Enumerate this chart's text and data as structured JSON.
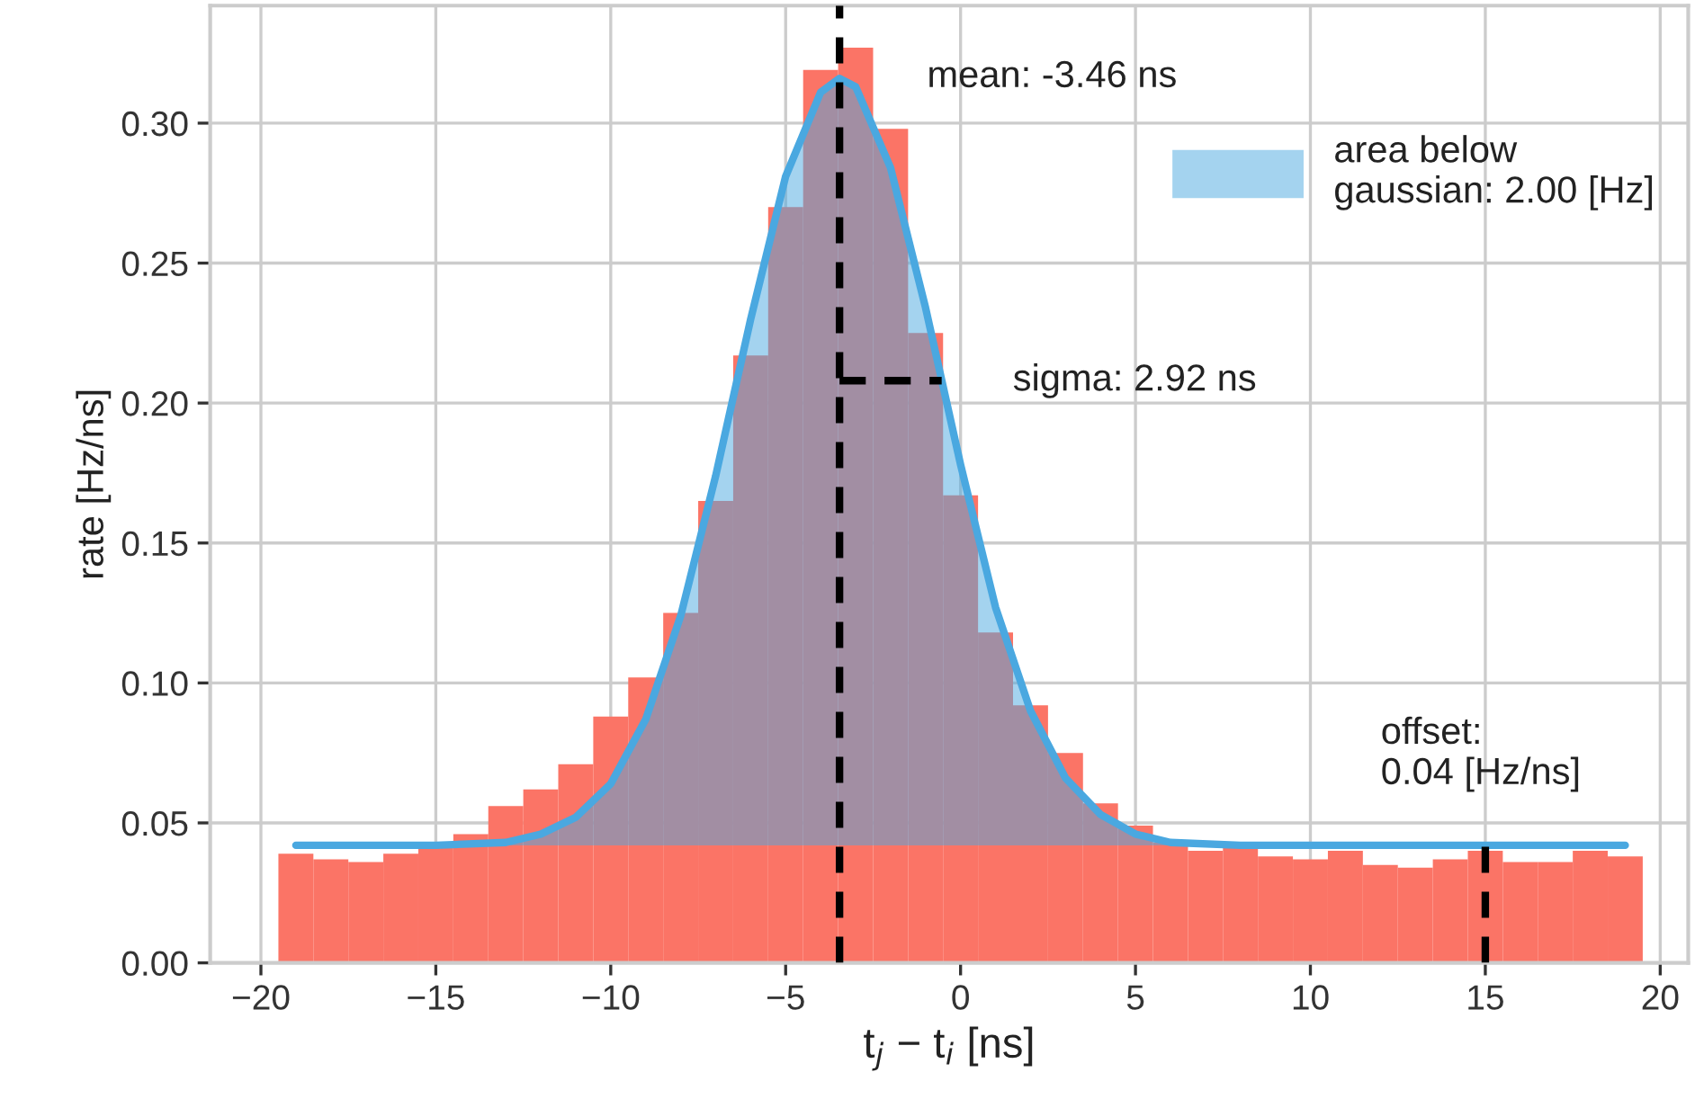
{
  "chart_data": {
    "type": "histogram",
    "bins": [
      -19.5,
      -18.5,
      -17.5,
      -16.5,
      -15.5,
      -14.5,
      -13.5,
      -12.5,
      -11.5,
      -10.5,
      -9.5,
      -8.5,
      -7.5,
      -6.5,
      -5.5,
      -4.5,
      -3.5,
      -2.5,
      -1.5,
      -0.5,
      0.5,
      1.5,
      2.5,
      3.5,
      4.5,
      5.5,
      6.5,
      7.5,
      8.5,
      9.5,
      10.5,
      11.5,
      12.5,
      13.5,
      14.5,
      15.5,
      16.5,
      17.5,
      18.5,
      19.5
    ],
    "values": [
      0.039,
      0.037,
      0.036,
      0.039,
      0.041,
      0.046,
      0.056,
      0.062,
      0.071,
      0.088,
      0.102,
      0.125,
      0.165,
      0.217,
      0.27,
      0.319,
      0.327,
      0.298,
      0.225,
      0.167,
      0.118,
      0.092,
      0.075,
      0.057,
      0.049,
      0.043,
      0.04,
      0.041,
      0.038,
      0.037,
      0.04,
      0.035,
      0.034,
      0.037,
      0.04,
      0.036,
      0.036,
      0.04,
      0.038
    ],
    "color": "#fb7466",
    "series": [
      {
        "type": "line",
        "name": "area below\ngaussian: 2.00 [Hz]",
        "color": "#4aa8e0",
        "x": [
          -19,
          -15,
          -13,
          -12,
          -11,
          -10,
          -9,
          -8,
          -7,
          -6,
          -5,
          -4,
          -3.46,
          -3,
          -2,
          -1,
          0,
          1,
          2,
          3,
          4,
          5,
          6,
          8,
          10,
          19
        ],
        "values": [
          0.042,
          0.042,
          0.043,
          0.046,
          0.052,
          0.064,
          0.087,
          0.124,
          0.174,
          0.23,
          0.281,
          0.311,
          0.316,
          0.313,
          0.284,
          0.234,
          0.178,
          0.127,
          0.09,
          0.066,
          0.053,
          0.046,
          0.043,
          0.042,
          0.042,
          0.042
        ]
      },
      {
        "type": "line",
        "color": "#000000",
        "line_style": "dashed",
        "x": [
          -3.46,
          -0.54
        ],
        "values": [
          0.208,
          0.208
        ]
      },
      {
        "type": "line",
        "color": "#000000",
        "line_style": "dashed",
        "x": [
          15,
          15
        ],
        "values": [
          0,
          0.042
        ]
      }
    ],
    "ref_lines": [
      {
        "axis": "x",
        "value": -3.46,
        "color": "#000000",
        "line_style": "dashed"
      }
    ],
    "annotations": [
      "mean: -3.46 ns",
      "sigma: 2.92 ns",
      "offset:\n0.04 [Hz/ns]"
    ],
    "xlabel": "t$_{j}$ − t$_{i}$ [ns]",
    "ylabel": "rate [Hz/ns]",
    "xlim": [
      -21.45,
      20.8
    ],
    "xticks": [
      {
        "value": -20,
        "label": "−20"
      },
      {
        "value": -15,
        "label": "−15"
      },
      {
        "value": -10,
        "label": "−10"
      },
      {
        "value": -5,
        "label": "−5"
      },
      0,
      5,
      10,
      15,
      20
    ],
    "ylim": [
      0,
      0.342
    ],
    "yticks": [
      {
        "value": 0,
        "label": "0.00"
      },
      0.05,
      {
        "value": 0.1,
        "label": "0.10"
      },
      0.15,
      {
        "value": 0.2,
        "label": "0.20"
      },
      0.25,
      {
        "value": 0.3,
        "label": "0.30"
      }
    ],
    "grid": true,
    "legend": "top right"
  }
}
